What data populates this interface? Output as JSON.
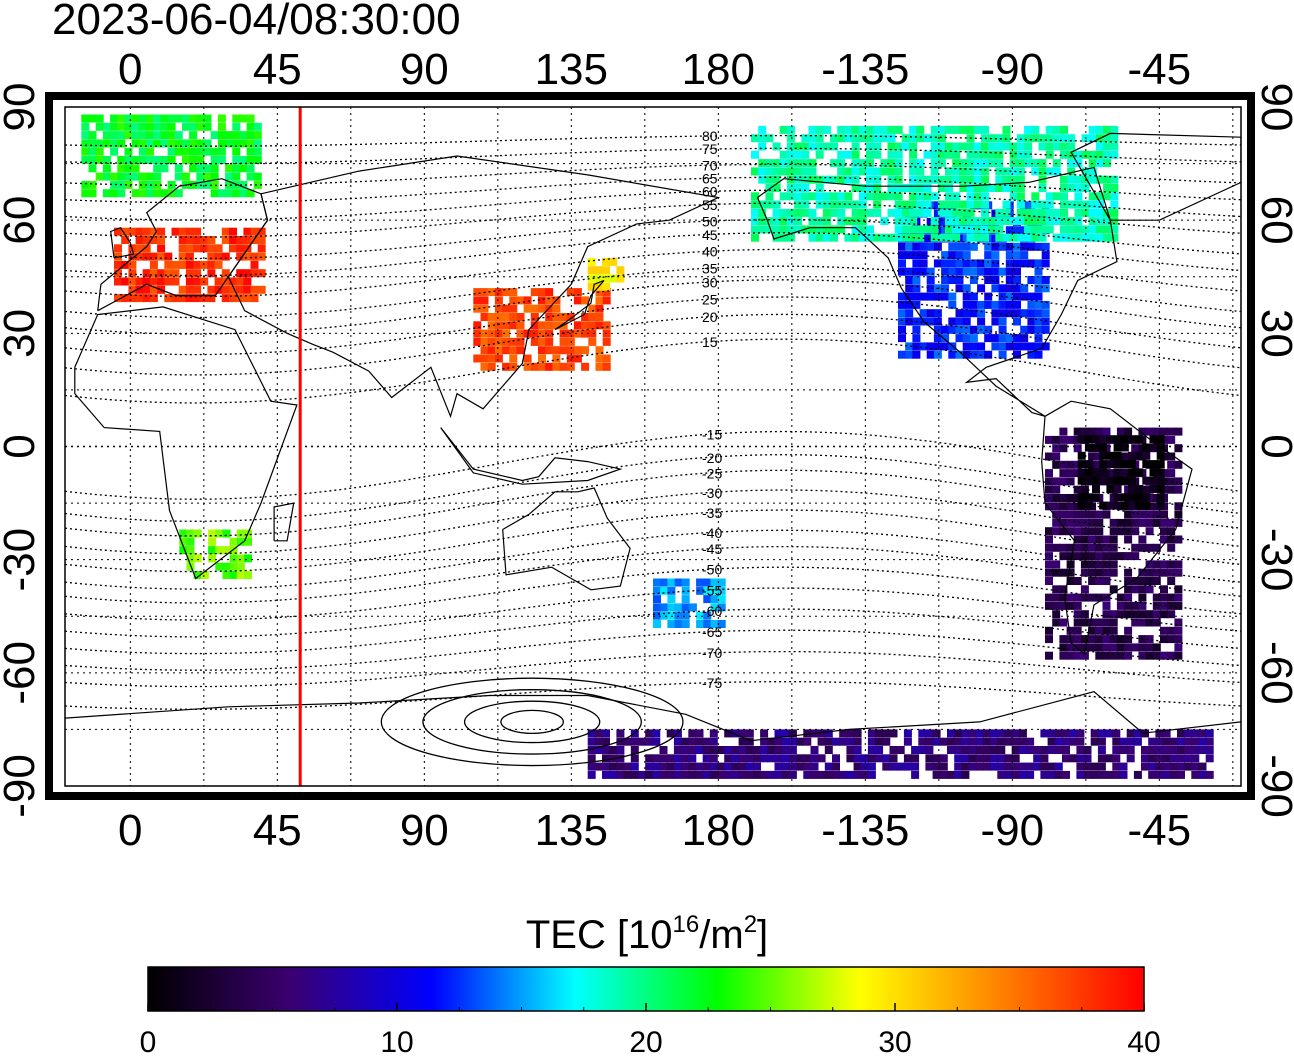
{
  "timestamp": "2023-06-04/08:30:00",
  "lon_ticks_top": [
    "0",
    "45",
    "90",
    "135",
    "180",
    "-135",
    "-90",
    "-45"
  ],
  "lon_ticks_bottom": [
    "0",
    "45",
    "90",
    "135",
    "180",
    "-135",
    "-90",
    "-45"
  ],
  "lat_ticks_left": [
    "90",
    "60",
    "30",
    "0",
    "-30",
    "-60",
    "-90"
  ],
  "lat_ticks_right": [
    "90",
    "60",
    "30",
    "0",
    "-30",
    "-60",
    "-90"
  ],
  "map_view": {
    "lon_min": -20,
    "lon_max": 340,
    "lat_min": -90,
    "lat_max": 90
  },
  "contour_labels": [
    "80",
    "75",
    "70",
    "65",
    "60",
    "55",
    "50",
    "45",
    "40",
    "35",
    "30",
    "25",
    "20",
    "15",
    "-15",
    "-20",
    "-25",
    "-30",
    "-35",
    "-40",
    "-45",
    "-50",
    "-55",
    "-60",
    "-65",
    "-70",
    "-75"
  ],
  "contour_label_lat": [
    81,
    77,
    72,
    68,
    64,
    60,
    55,
    51,
    46,
    41,
    37,
    32,
    27,
    20,
    -5,
    -11,
    -15,
    -20,
    -25,
    -30,
    -34,
    -39,
    -44,
    -49,
    -54,
    -59,
    -66
  ],
  "terminator_lon": 52,
  "terminator_color": "#ff0000",
  "colorbar": {
    "title_main": "TEC  [10",
    "title_sup1": "16",
    "title_mid": "/m",
    "title_sup2": "2",
    "title_end": "]",
    "min": 0,
    "max": 40,
    "tick_values": [
      0,
      10,
      20,
      30,
      40
    ],
    "tick_labels": [
      "0",
      "10",
      "20",
      "30",
      "40"
    ],
    "stops": [
      "#000000",
      "#3a0070",
      "#0000ff",
      "#00ffff",
      "#00ff00",
      "#ffff00",
      "#ff8000",
      "#ff0000"
    ]
  },
  "tec_regions": [
    {
      "name": "europe",
      "lon": [
        -5,
        40
      ],
      "lat": [
        40,
        58
      ],
      "tec": 38
    },
    {
      "name": "east-asia",
      "lon": [
        105,
        145
      ],
      "lat": [
        22,
        42
      ],
      "tec": 37
    },
    {
      "name": "north-atlantic",
      "lon": [
        -15,
        40
      ],
      "lat": [
        68,
        88
      ],
      "tec": 22
    },
    {
      "name": "south-africa",
      "lon": [
        15,
        35
      ],
      "lat": [
        -35,
        -22
      ],
      "tec": 25
    },
    {
      "name": "north-america",
      "lon": [
        235,
        280
      ],
      "lat": [
        25,
        65
      ],
      "tec": 12
    },
    {
      "name": "alaska-canada",
      "lon": [
        190,
        300
      ],
      "lat": [
        55,
        85
      ],
      "tec": 19
    },
    {
      "name": "south-america",
      "lon": [
        280,
        320
      ],
      "lat": [
        -55,
        5
      ],
      "tec": 4
    },
    {
      "name": "amazon",
      "lon": [
        290,
        315
      ],
      "lat": [
        -15,
        3
      ],
      "tec": 1
    },
    {
      "name": "antarctic",
      "lon": [
        140,
        330
      ],
      "lat": [
        -88,
        -75
      ],
      "tec": 6
    },
    {
      "name": "new-zealand",
      "lon": [
        160,
        180
      ],
      "lat": [
        -48,
        -35
      ],
      "tec": 15
    },
    {
      "name": "japan-north",
      "lon": [
        140,
        150
      ],
      "lat": [
        42,
        50
      ],
      "tec": 29
    }
  ]
}
